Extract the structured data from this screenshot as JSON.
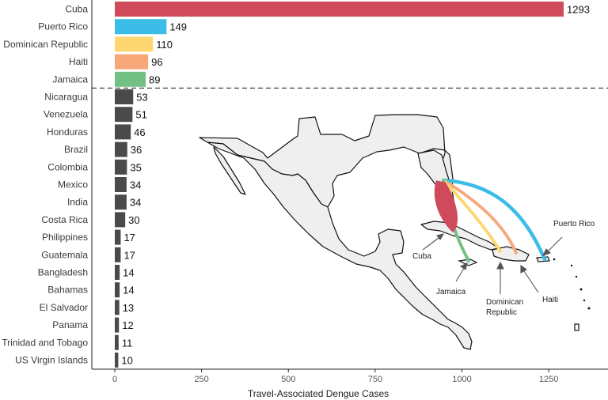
{
  "chart_data": {
    "type": "bar",
    "orientation": "horizontal",
    "xlabel": "Travel-Associated Dengue Cases",
    "xlim": [
      0,
      1400
    ],
    "xticks": [
      0,
      250,
      500,
      750,
      1000,
      1250
    ],
    "grid": false,
    "categories": [
      "Cuba",
      "Puerto Rico",
      "Dominican Republic",
      "Haiti",
      "Jamaica",
      "Nicaragua",
      "Venezuela",
      "Honduras",
      "Brazil",
      "Colombia",
      "Mexico",
      "India",
      "Costa Rica",
      "Philippines",
      "Guatemala",
      "Bangladesh",
      "Bahamas",
      "El Salvador",
      "Panama",
      "Trinidad and Tobago",
      "US Virgin Islands"
    ],
    "values": [
      1293,
      149,
      110,
      96,
      89,
      53,
      51,
      46,
      36,
      35,
      34,
      34,
      30,
      17,
      17,
      14,
      14,
      13,
      12,
      11,
      10
    ],
    "colors": [
      "#cf4a5a",
      "#3bbde8",
      "#fdd66f",
      "#f7a878",
      "#74bf84",
      "#4a4a4a",
      "#4a4a4a",
      "#4a4a4a",
      "#4a4a4a",
      "#4a4a4a",
      "#4a4a4a",
      "#4a4a4a",
      "#4a4a4a",
      "#4a4a4a",
      "#4a4a4a",
      "#4a4a4a",
      "#4a4a4a",
      "#4a4a4a",
      "#4a4a4a",
      "#4a4a4a",
      "#4a4a4a"
    ],
    "separator_after_index": 4,
    "inset_map": {
      "description_labels": [
        "Cuba",
        "Jamaica",
        "Dominican Republic",
        "Haiti",
        "Puerto Rico"
      ],
      "label_cuba": "Cuba",
      "label_jamaica": "Jamaica",
      "label_dominican_line1": "Dominican",
      "label_dominican_line2": "Republic",
      "label_haiti": "Haiti",
      "label_puerto_rico": "Puerto Rico",
      "arc_colors": {
        "cuba": "#cf4a5a",
        "puerto_rico": "#3bbde8",
        "dominican_republic": "#fdd66f",
        "haiti": "#f7a878",
        "jamaica": "#74bf84"
      }
    }
  }
}
